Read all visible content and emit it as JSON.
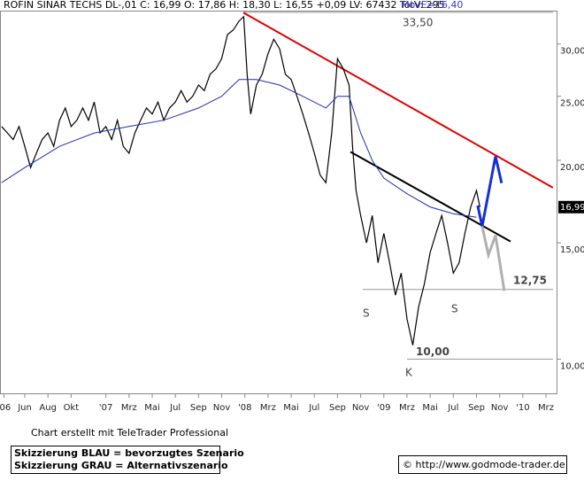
{
  "chart_data": {
    "type": "line",
    "header": "ROFIN SINAR TECHS  DL-,01 C: 16,99 O: 17,86 H: 18,30 L: 16,55 +0,09 LV: 67432 TotV: 295",
    "indicator": "MovE=16,40",
    "log_scale": true,
    "xlim": [
      2.86,
      50.99
    ],
    "ylim": [
      8.85,
      33.7
    ],
    "xticks": [
      {
        "value": 3.2,
        "label": "'06"
      },
      {
        "value": 5,
        "label": "Jun"
      },
      {
        "value": 7,
        "label": "Aug"
      },
      {
        "value": 9,
        "label": "Okt"
      },
      {
        "value": 12,
        "label": "'07"
      },
      {
        "value": 14,
        "label": "Mrz"
      },
      {
        "value": 16,
        "label": "Mai"
      },
      {
        "value": 18,
        "label": "Jul"
      },
      {
        "value": 20,
        "label": "Sep"
      },
      {
        "value": 22,
        "label": "Nov"
      },
      {
        "value": 24,
        "label": "'08"
      },
      {
        "value": 26,
        "label": "Mrz"
      },
      {
        "value": 28,
        "label": "Mai"
      },
      {
        "value": 30,
        "label": "Jul"
      },
      {
        "value": 32,
        "label": "Sep"
      },
      {
        "value": 34,
        "label": "Nov"
      },
      {
        "value": 36,
        "label": "'09"
      },
      {
        "value": 38,
        "label": "Mrz"
      },
      {
        "value": 40,
        "label": "Mai"
      },
      {
        "value": 42,
        "label": "Jul"
      },
      {
        "value": 44,
        "label": "Sep"
      },
      {
        "value": 46,
        "label": "Nov"
      },
      {
        "value": 48,
        "label": "'10"
      },
      {
        "value": 50,
        "label": "Mrz"
      }
    ],
    "yticks": [
      {
        "value": 10,
        "label": "10,00"
      },
      {
        "value": 15,
        "label": "15,00"
      },
      {
        "value": 20,
        "label": "20,00"
      },
      {
        "value": 25,
        "label": "25,00"
      },
      {
        "value": 30,
        "label": "30,00"
      }
    ],
    "series": [
      {
        "color": "#000000",
        "x": [
          3,
          3.5,
          4,
          4.5,
          5,
          5.5,
          6,
          6.5,
          7,
          7.5,
          8,
          8.5,
          9,
          9.5,
          10,
          10.5,
          11,
          11.5,
          12,
          12.5,
          13,
          13.5,
          14,
          14.5,
          15,
          15.5,
          16,
          16.5,
          17,
          17.5,
          18,
          18.5,
          19,
          19.5,
          20,
          20.5,
          21,
          21.5,
          22,
          22.5,
          23,
          23.5,
          23.9,
          24.2,
          24.5,
          25,
          25.5,
          26,
          26.5,
          27,
          27.5,
          28,
          28.5,
          29,
          29.5,
          30,
          30.5,
          31,
          31.5,
          32,
          32.5,
          33,
          33.3,
          33.6,
          34,
          34.5,
          35,
          35.5,
          36,
          36.5,
          37,
          37.5,
          38,
          38.5,
          39,
          39.5,
          40,
          40.5,
          41,
          41.5,
          42,
          42.5,
          43,
          43.5,
          44,
          44.3
        ],
        "values": [
          22.5,
          22,
          21.5,
          22.5,
          21,
          19.5,
          20.5,
          21.5,
          22,
          21,
          23,
          24,
          22.5,
          23,
          24,
          23,
          24.5,
          22,
          22.5,
          21.5,
          23,
          21,
          20.5,
          22,
          23,
          24,
          23.5,
          24.5,
          23,
          24,
          24.5,
          25.5,
          24.5,
          25,
          26,
          25.5,
          27,
          27.5,
          28.5,
          31,
          31.5,
          32.5,
          33,
          27,
          23.5,
          26,
          27,
          29,
          30.5,
          29.5,
          27,
          26.5,
          25,
          23.5,
          22,
          20.5,
          19,
          18.5,
          22,
          28.5,
          27.5,
          26,
          21,
          18,
          16.5,
          15,
          16.5,
          14,
          15.5,
          14,
          12.5,
          13.5,
          11.5,
          10.5,
          12,
          13,
          14.5,
          15.5,
          16.5,
          15,
          13.5,
          14,
          15.5,
          17,
          18,
          16.99
        ]
      },
      {
        "color": "#1f2fb0",
        "x": [
          3,
          5,
          8,
          11,
          14,
          17,
          20,
          22,
          23.5,
          25,
          27,
          29,
          31,
          32,
          33,
          34,
          35,
          36,
          38,
          40,
          42,
          44
        ],
        "values": [
          18.5,
          19.5,
          21,
          22,
          22.5,
          23,
          24,
          25,
          26.5,
          26.5,
          26,
          25,
          24,
          25,
          25,
          22,
          20,
          18.8,
          17.8,
          17,
          16.6,
          16.4
        ]
      }
    ],
    "last_price": {
      "value": 16.99,
      "label": "16,99"
    },
    "trendlines": [
      {
        "color": "#e00000",
        "x": [
          23.87,
          50.6
        ],
        "values": [
          33.47,
          18.18
        ]
      },
      {
        "color": "#000000",
        "x": [
          33.11,
          46.94
        ],
        "values": [
          20.6,
          15.07
        ]
      }
    ],
    "scenarios": [
      {
        "color": "#1530d8",
        "x": [
          44.11,
          44.49,
          45.64,
          46.17
        ],
        "values": [
          17.08,
          15.89,
          20.28,
          18.47
        ]
      },
      {
        "color": "#b0b0b0",
        "x": [
          44.49,
          45.03,
          45.64,
          46.4
        ],
        "values": [
          15.89,
          14.38,
          15.4,
          12.69
        ]
      }
    ],
    "levels": [
      {
        "value": 33.5,
        "label": "33,50"
      },
      {
        "value": 12.75,
        "label": "12,75"
      },
      {
        "value": 10,
        "label": "10,00"
      }
    ],
    "annotations": [
      "S",
      "S",
      "K"
    ],
    "credit": "Chart erstellt mit TeleTrader Professional",
    "legend": [
      "Skizzierung BLAU = bevorzugtes Szenario",
      "Skizzierung GRAU = Alternativszenario"
    ],
    "source": "© http://www.godmode-trader.de"
  }
}
